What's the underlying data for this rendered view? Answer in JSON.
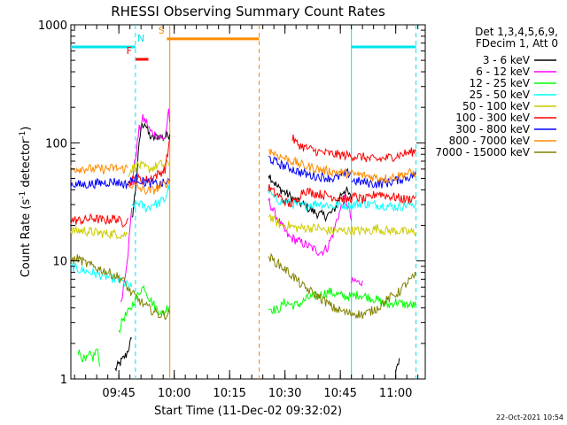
{
  "chart_data": {
    "type": "line",
    "title": "RHESSI Observing Summary Count Rates",
    "xlabel": "Start Time (11-Dec-02 09:32:02)",
    "ylabel_parts": [
      "Count Rate (s",
      "-1",
      " detector",
      "-1",
      ")"
    ],
    "y_scale": "log",
    "ylim": [
      1,
      1000
    ],
    "y_ticks": [
      {
        "v": 1,
        "label": "1"
      },
      {
        "v": 10,
        "label": "10"
      },
      {
        "v": 100,
        "label": "100"
      },
      {
        "v": 1000,
        "label": "1000"
      }
    ],
    "xlim_minutes": [
      0,
      96
    ],
    "x_ticks": [
      {
        "min": 13,
        "label": "09:45"
      },
      {
        "min": 28,
        "label": "10:00"
      },
      {
        "min": 43,
        "label": "10:15"
      },
      {
        "min": 58,
        "label": "10:30"
      },
      {
        "min": 73,
        "label": "10:45"
      },
      {
        "min": 88,
        "label": "11:00"
      }
    ],
    "legend_header": [
      "Det 1,3,4,5,6,9,",
      "FDecim 1, Att 0"
    ],
    "legend_placement": "right",
    "timestamp": "22-Oct-2021 10:54",
    "flags": [
      {
        "code": "N",
        "color": "#00e5ee",
        "start": 0,
        "end": 17.5,
        "level": 650,
        "text_at": 19
      },
      {
        "code": "F",
        "color": "#ff0000",
        "start": 17.5,
        "end": 21,
        "level": 510,
        "text_at": 15.8
      },
      {
        "code": "S",
        "color": "#ff8c00",
        "start": 26,
        "end": 51,
        "level": 760,
        "text_at": 24.5
      },
      {
        "code": "N",
        "color": "#00e5ee",
        "start": 76,
        "end": 93.5,
        "level": 650,
        "text_at": null
      }
    ],
    "vlines": [
      {
        "min": 17.5,
        "color": "#00e5ee",
        "dashed": true
      },
      {
        "min": 26.8,
        "color": "#ff8c00",
        "dashed": false
      },
      {
        "min": 51,
        "color": "#ff8c00",
        "dashed": true
      },
      {
        "min": 76,
        "color": "#00e5ee",
        "dashed": false
      },
      {
        "min": 93.5,
        "color": "#00e5ee",
        "dashed": true
      }
    ],
    "series": [
      {
        "name": "3 - 6 keV",
        "color": "#000000",
        "segments": [
          {
            "x": [
              12,
              15,
              16.5
            ],
            "y": [
              1.2,
              1.6,
              2.2
            ]
          },
          {
            "x": [
              16.5,
              17.5,
              18.5,
              19,
              20,
              21,
              22,
              23,
              24,
              25,
              26,
              26.8
            ],
            "y": [
              22,
              40,
              95,
              135,
              150,
              120,
              108,
              112,
              115,
              110,
              115,
              118
            ]
          },
          {
            "x": [
              53.5,
              56,
              59,
              61,
              63,
              65,
              67,
              69,
              71,
              72,
              73,
              74,
              75,
              76
            ],
            "y": [
              55,
              42,
              36,
              32,
              30,
              27,
              25,
              24,
              26,
              30,
              36,
              40,
              38,
              33
            ]
          },
          {
            "x": [
              88,
              89
            ],
            "y": [
              1.2,
              1.5
            ]
          }
        ]
      },
      {
        "name": "6 - 12 keV",
        "color": "#ff00ff",
        "segments": [
          {
            "x": [
              13.5,
              14.5,
              15.5,
              16.5
            ],
            "y": [
              4.2,
              7,
              12,
              28
            ]
          },
          {
            "x": [
              16.5,
              17.5,
              18.5,
              19.5,
              20.5,
              21.5,
              22.5,
              23.5,
              24.5,
              25.5,
              26.5,
              26.8
            ],
            "y": [
              45,
              75,
              130,
              160,
              150,
              125,
              120,
              115,
              110,
              110,
              180,
              150
            ]
          },
          {
            "x": [
              53.5,
              55,
              57,
              59,
              61,
              63,
              65,
              67,
              68,
              69.5,
              71,
              72,
              73,
              74,
              75,
              76
            ],
            "y": [
              33,
              26,
              20,
              16,
              15,
              14,
              13,
              12,
              12,
              13,
              17,
              22,
              27,
              33,
              30,
              22
            ]
          },
          {
            "x": [
              76,
              77,
              78,
              79
            ],
            "y": [
              6.5,
              6.8,
              6.5,
              6.8
            ]
          }
        ]
      },
      {
        "name": "12 - 25 keV",
        "color": "#00ff00",
        "segments": [
          {
            "x": [
              2,
              4,
              5,
              6,
              7,
              8
            ],
            "y": [
              1.7,
              1.4,
              1.6,
              1.5,
              1.8,
              1.3
            ]
          },
          {
            "x": [
              13,
              14,
              15,
              16,
              17,
              18,
              19,
              20,
              21,
              22,
              23,
              24,
              25,
              26,
              26.8
            ],
            "y": [
              2.5,
              3.2,
              3.5,
              3.8,
              4.5,
              5,
              5.8,
              6,
              5,
              4.5,
              4,
              3.8,
              3.5,
              4,
              4.2
            ]
          },
          {
            "x": [
              53.5,
              56,
              58,
              60,
              62,
              64,
              66,
              68,
              70,
              72,
              74,
              76,
              78,
              80,
              82,
              84,
              86,
              88,
              90,
              92,
              93.5
            ],
            "y": [
              4,
              3.8,
              4.5,
              4.2,
              4.3,
              4.8,
              5,
              5.2,
              5.5,
              5.2,
              5,
              5,
              5.2,
              5,
              4.8,
              4.5,
              4.2,
              4.5,
              4.3,
              4.2,
              4.2
            ]
          }
        ]
      },
      {
        "name": "25 - 50 keV",
        "color": "#00ffff",
        "segments": [
          {
            "x": [
              0,
              2,
              4,
              6,
              8,
              10,
              12,
              14,
              15.5,
              16.5
            ],
            "y": [
              9,
              8.5,
              8.2,
              7.9,
              7.6,
              7.3,
              7,
              6.6,
              6.2,
              6
            ]
          },
          {
            "x": [
              16.5,
              17.5,
              18.5,
              19.5,
              20.5,
              21.5,
              22.5,
              23.5,
              24.5,
              25.5,
              26.2,
              26.8
            ],
            "y": [
              28,
              30,
              31,
              29,
              28,
              29,
              31,
              30,
              32,
              33,
              40,
              45
            ]
          },
          {
            "x": [
              53.5,
              55,
              57,
              59,
              61,
              63,
              65,
              67,
              69,
              71,
              73,
              75,
              77,
              79,
              81,
              83,
              85,
              87,
              89,
              91,
              93.5
            ],
            "y": [
              40,
              34,
              32,
              31,
              30,
              29,
              30,
              31,
              30,
              29,
              30,
              29.5,
              30,
              31,
              30,
              30,
              29.5,
              29,
              28.5,
              30,
              30
            ]
          }
        ]
      },
      {
        "name": "50 - 100 keV",
        "color": "#cccc00",
        "segments": [
          {
            "x": [
              0,
              3,
              6,
              9,
              12,
              14,
              15.5
            ],
            "y": [
              18,
              18,
              17.5,
              17,
              17,
              16.5,
              17
            ]
          },
          {
            "x": [
              15.5,
              16.5,
              18,
              19.5,
              21,
              22.5,
              24,
              25.5,
              26.8
            ],
            "y": [
              55,
              60,
              65,
              63,
              60,
              62,
              66,
              65,
              66
            ]
          },
          {
            "x": [
              53.5,
              55,
              57,
              59,
              61,
              63,
              65,
              67,
              69,
              71,
              73,
              75,
              77,
              79,
              81,
              83,
              85,
              87,
              89,
              91,
              93.5
            ],
            "y": [
              25,
              22,
              20,
              20,
              19,
              19,
              19,
              19,
              18,
              18,
              18,
              18,
              18,
              18,
              18,
              19,
              18,
              18,
              18,
              17.5,
              17.5
            ]
          }
        ]
      },
      {
        "name": "100 - 300 keV",
        "color": "#ff0000",
        "segments": [
          {
            "x": [
              0,
              3,
              6,
              9,
              12,
              14,
              15.5
            ],
            "y": [
              22,
              22,
              23,
              22,
              23,
              21,
              23
            ]
          },
          {
            "x": [
              15.5,
              16.5,
              18,
              19.5,
              21,
              22.5,
              24,
              25.5,
              26.2,
              26.8
            ],
            "y": [
              45,
              48,
              50,
              48,
              49,
              52,
              55,
              60,
              80,
              110
            ]
          },
          {
            "x": [
              53.5,
              55,
              57,
              59,
              61,
              63,
              65,
              67,
              69,
              71,
              73,
              75,
              77,
              79,
              81,
              83,
              85,
              87,
              89,
              91,
              93.5
            ],
            "y": [
              42,
              38,
              34,
              30,
              32,
              40,
              38,
              37,
              36,
              35,
              34,
              33,
              35,
              33,
              34,
              38,
              36,
              35,
              34,
              33,
              35
            ]
          },
          {
            "x": [
              60,
              61,
              63,
              65,
              67,
              69,
              71,
              73,
              75,
              77,
              79,
              81,
              83,
              85,
              87,
              89,
              91,
              93.5
            ],
            "y": [
              110,
              100,
              92,
              88,
              84,
              82,
              80,
              79,
              78,
              77,
              76,
              73,
              72,
              74,
              76,
              79,
              82,
              85
            ]
          }
        ]
      },
      {
        "name": "300 - 800 keV",
        "color": "#0000ff",
        "segments": [
          {
            "x": [
              0,
              3,
              6,
              9,
              12,
              14,
              15.5
            ],
            "y": [
              45,
              44,
              45,
              46,
              47,
              45,
              44
            ]
          },
          {
            "x": [
              15.5,
              16.5,
              18,
              19.5,
              21,
              22.5,
              24,
              25.5,
              26.8
            ],
            "y": [
              46,
              48,
              50,
              47,
              46,
              45,
              44,
              46,
              48
            ]
          },
          {
            "x": [
              53.5,
              55,
              57,
              59,
              61,
              63,
              65,
              67,
              69,
              71,
              73,
              75,
              76
            ],
            "y": [
              75,
              70,
              65,
              62,
              58,
              55,
              53,
              52,
              51,
              50,
              52,
              55,
              56
            ]
          },
          {
            "x": [
              76,
              78,
              80,
              82,
              84,
              86,
              88,
              90,
              92,
              93.5
            ],
            "y": [
              48,
              47,
              46,
              45,
              45,
              46,
              48,
              50,
              52,
              54
            ]
          }
        ]
      },
      {
        "name": "800 - 7000 keV",
        "color": "#ff8c00",
        "segments": [
          {
            "x": [
              0,
              3,
              6,
              9,
              12,
              14,
              15.5
            ],
            "y": [
              60,
              61,
              60,
              60,
              61,
              60,
              62
            ]
          },
          {
            "x": [
              15.5,
              16.5,
              18,
              19.5,
              21,
              22.5,
              24,
              25.5,
              26.8
            ],
            "y": [
              45,
              44,
              42,
              40,
              39,
              40,
              42,
              45,
              48
            ]
          },
          {
            "x": [
              53.5,
              55,
              57,
              59,
              61,
              63,
              65,
              67,
              69,
              71,
              73,
              75,
              77,
              79,
              81,
              83,
              85,
              87,
              89,
              91,
              93.5
            ],
            "y": [
              88,
              82,
              76,
              72,
              68,
              64,
              62,
              60,
              58,
              57,
              56,
              55,
              54,
              53,
              52,
              51,
              50,
              51,
              53,
              55,
              56
            ]
          }
        ]
      },
      {
        "name": "7000 - 15000 keV",
        "color": "#808000",
        "segments": [
          {
            "x": [
              0,
              2,
              4,
              6,
              8,
              10,
              12,
              14,
              16,
              18,
              20,
              22,
              24,
              26,
              26.8
            ],
            "y": [
              10,
              10.5,
              9.5,
              9,
              8.5,
              8,
              7.5,
              7,
              5.5,
              4.8,
              4.2,
              3.8,
              3.5,
              3.5,
              3.6
            ]
          },
          {
            "x": [
              53.5,
              55,
              57,
              59,
              61,
              63,
              65,
              67,
              69,
              71,
              73,
              75,
              77,
              79,
              81,
              83,
              85,
              87,
              89,
              91,
              93.5
            ],
            "y": [
              11,
              10,
              9,
              8,
              7,
              6,
              5.5,
              5,
              4.5,
              4,
              3.8,
              3.6,
              3.6,
              3.5,
              3.7,
              4,
              4.5,
              5,
              5.5,
              6.5,
              7.5
            ]
          }
        ]
      }
    ]
  }
}
